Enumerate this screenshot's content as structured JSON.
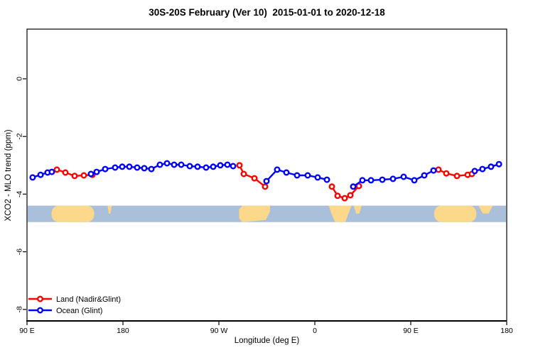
{
  "legend": {
    "items": [
      {
        "label": "Land (Nadir&Glint)",
        "color": "#ff0000"
      },
      {
        "label": "Ocean (Glint)",
        "color": "#0000ff"
      }
    ]
  },
  "chart_data": {
    "type": "line",
    "title": "30S-20S February (Ver 10)  2015-01-01 to 2020-12-18",
    "xlabel": "Longitude (deg E)",
    "ylabel": "XCO2 - MLO trend (ppm)",
    "grid": false,
    "legend_position": "bottom-left",
    "x_axis": {
      "note": "longitude increases eastward and wraps: 90E to 180 to 90W to 0 to 90E to 180 (axis units 90..540)",
      "range": [
        90,
        540
      ],
      "ticks": [
        {
          "pos": 90,
          "label": "90 E"
        },
        {
          "pos": 180,
          "label": "180"
        },
        {
          "pos": 270,
          "label": "90 W"
        },
        {
          "pos": 360,
          "label": "0"
        },
        {
          "pos": 450,
          "label": "90 E"
        },
        {
          "pos": 540,
          "label": "180"
        }
      ]
    },
    "y_axis": {
      "range": [
        1.7,
        -8.4
      ],
      "ticks": [
        {
          "pos": 0,
          "label": "0"
        },
        {
          "pos": -2,
          "label": "-2"
        },
        {
          "pos": -4,
          "label": "-4"
        },
        {
          "pos": -6,
          "label": "-6"
        },
        {
          "pos": -8,
          "label": "-8"
        }
      ]
    },
    "series": [
      {
        "name": "Land (Nadir&Glint)",
        "color": "#ff0000",
        "marker": "open-circle",
        "segments": [
          [
            [
              118,
              -3.15
            ],
            [
              126,
              -3.25
            ],
            [
              134.7,
              -3.37
            ],
            [
              143.3,
              -3.35
            ],
            [
              151.3,
              -3.33
            ]
          ],
          [
            [
              289.3,
              -3.0
            ],
            [
              293.3,
              -3.3
            ],
            [
              303.3,
              -3.45
            ],
            [
              313.3,
              -3.74
            ]
          ],
          [
            [
              376,
              -3.74
            ],
            [
              381.3,
              -4.06
            ],
            [
              388,
              -4.14
            ],
            [
              393.3,
              -4.04
            ],
            [
              401.3,
              -3.72
            ]
          ],
          [
            [
              476,
              -3.15
            ],
            [
              483.3,
              -3.28
            ],
            [
              493.3,
              -3.37
            ],
            [
              503.3,
              -3.33
            ],
            [
              507.3,
              -3.3
            ]
          ]
        ]
      },
      {
        "name": "Ocean (Glint)",
        "color": "#0000ff",
        "marker": "open-circle",
        "segments": [
          [
            [
              95.3,
              -3.42
            ],
            [
              102.7,
              -3.33
            ],
            [
              109.3,
              -3.25
            ],
            [
              113.3,
              -3.23
            ]
          ],
          [
            [
              150,
              -3.3
            ],
            [
              155.3,
              -3.23
            ],
            [
              163.3,
              -3.13
            ],
            [
              172.7,
              -3.08
            ],
            [
              179.3,
              -3.05
            ],
            [
              186,
              -3.05
            ],
            [
              193.3,
              -3.08
            ],
            [
              200,
              -3.1
            ],
            [
              206.7,
              -3.13
            ],
            [
              214.7,
              -2.98
            ],
            [
              221.3,
              -2.93
            ],
            [
              228,
              -2.98
            ],
            [
              234.7,
              -2.98
            ],
            [
              242.7,
              -3.03
            ],
            [
              250,
              -3.05
            ],
            [
              258,
              -3.08
            ],
            [
              264.7,
              -3.05
            ],
            [
              271.3,
              -3.0
            ],
            [
              278,
              -2.98
            ],
            [
              283.3,
              -3.03
            ]
          ],
          [
            [
              314.7,
              -3.55
            ],
            [
              324.7,
              -3.15
            ],
            [
              333.3,
              -3.25
            ],
            [
              343.3,
              -3.35
            ],
            [
              353.3,
              -3.35
            ],
            [
              362.7,
              -3.42
            ],
            [
              371.3,
              -3.5
            ]
          ],
          [
            [
              396,
              -3.74
            ],
            [
              404.7,
              -3.52
            ],
            [
              412.7,
              -3.52
            ],
            [
              423.3,
              -3.5
            ],
            [
              433.3,
              -3.47
            ],
            [
              443.3,
              -3.4
            ],
            [
              453.3,
              -3.52
            ],
            [
              462.7,
              -3.35
            ],
            [
              471.3,
              -3.18
            ]
          ],
          [
            [
              510,
              -3.2
            ],
            [
              517.3,
              -3.13
            ],
            [
              525.3,
              -3.05
            ],
            [
              532.7,
              -2.96
            ]
          ]
        ]
      }
    ],
    "map_band": {
      "description": "30S-20S latitude strip world map",
      "ocean_color": "#aabfda",
      "land_color": "#fcd88a",
      "y_top": -4.4,
      "y_bottom": -4.97,
      "land": [
        {
          "name": "australia",
          "lon": [
            113,
            153
          ],
          "shape": "blob"
        },
        {
          "name": "new-caledonia",
          "lon": [
            165.5,
            169.5
          ],
          "shape": "top"
        },
        {
          "name": "south-america",
          "lon": [
            289,
            318
          ],
          "shape": "taper-right"
        },
        {
          "name": "southern-africa",
          "lon": [
            373,
            394.5
          ],
          "shape": "taper-bottom"
        },
        {
          "name": "madagascar",
          "lon": [
            396.5,
            404
          ],
          "shape": "top"
        },
        {
          "name": "australia-2",
          "lon": [
            472,
            511.5
          ],
          "shape": "blob"
        },
        {
          "name": "new-caledonia-2",
          "lon": [
            513.5,
            527
          ],
          "shape": "top"
        }
      ]
    }
  }
}
